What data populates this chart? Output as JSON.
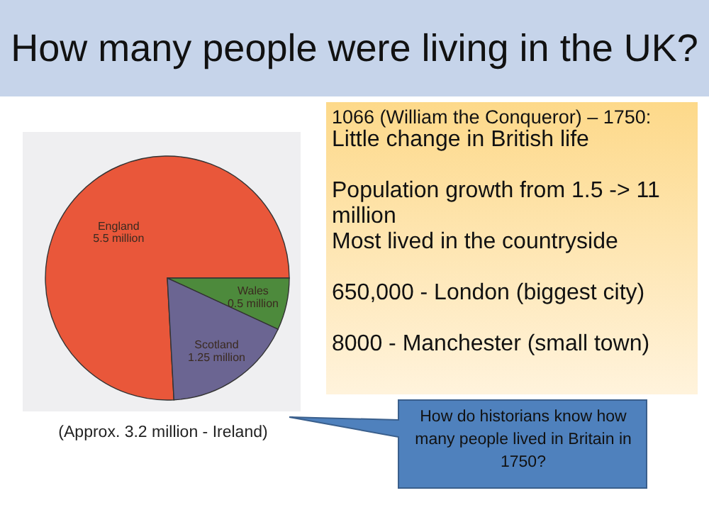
{
  "chart_data": {
    "type": "pie",
    "title": "How many people were living in the UK?",
    "categories": [
      "England",
      "Wales",
      "Scotland"
    ],
    "values": [
      5.5,
      0.5,
      1.25
    ],
    "value_labels": [
      "5.5 million",
      "0.5 million",
      "1.25 million"
    ],
    "colors": [
      "#e9573a",
      "#4d8a3c",
      "#6b6592"
    ],
    "legend": false,
    "annotations": [
      "1066 (William the Conqueror) – 1750:",
      "Little change in British life",
      "Population growth from 1.5 -> 11 million",
      "Most lived in the countryside",
      "650,000  - London (biggest city)",
      "8000 - Manchester  (small town)",
      "(Approx. 3.2 million  - Ireland)",
      "How do historians know how many people lived in Britain in 1750?"
    ]
  }
}
